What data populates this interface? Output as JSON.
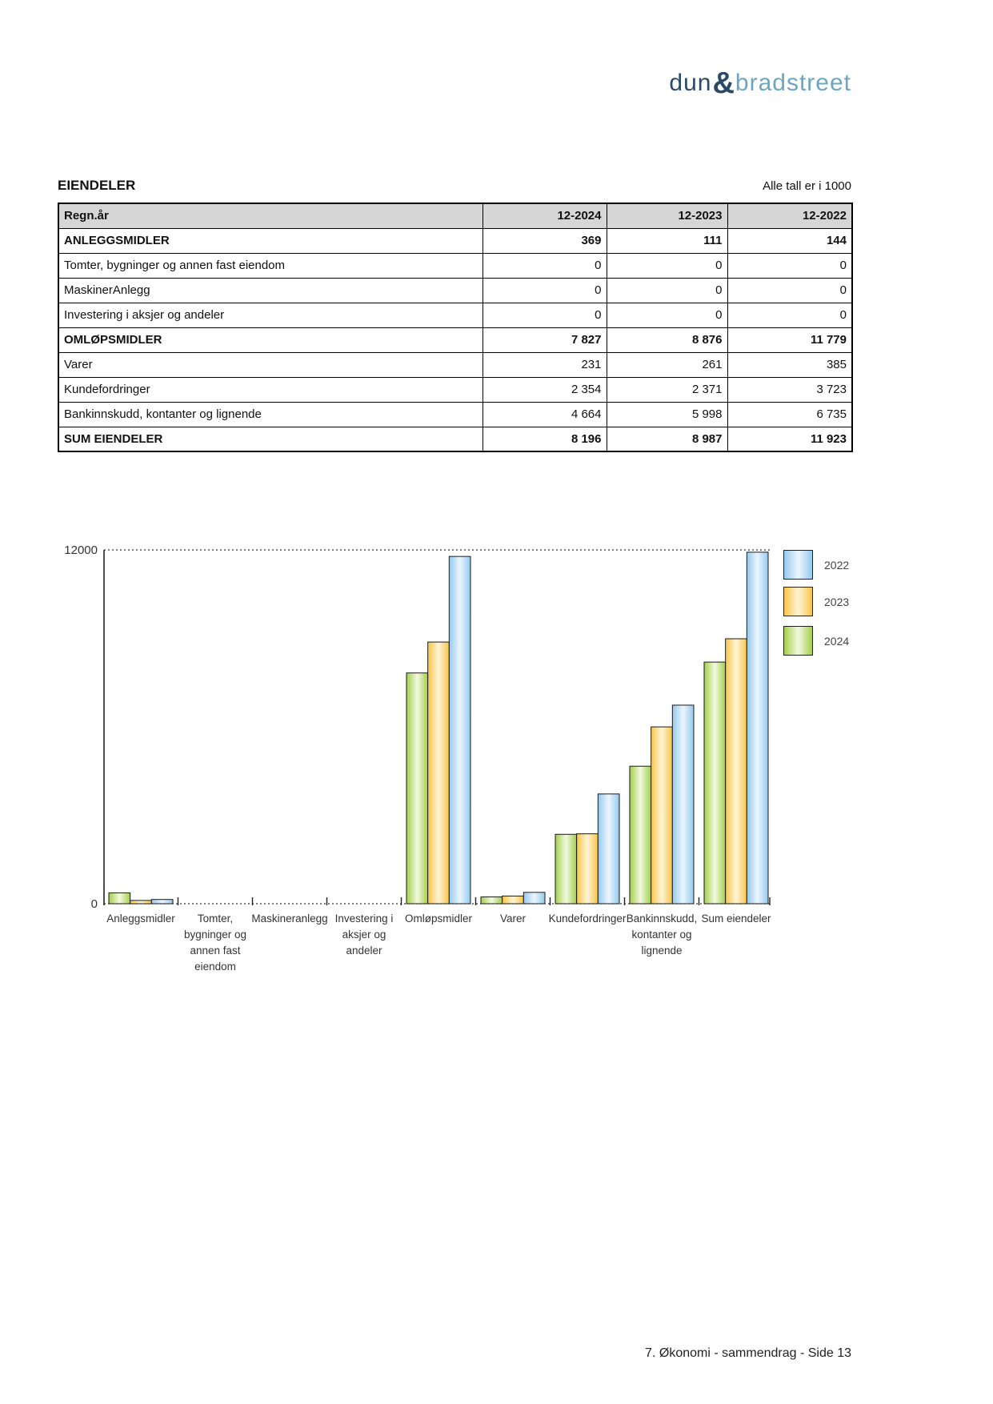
{
  "logo": {
    "part1": "dun",
    "amp": "&",
    "part2": "bradstreet",
    "color_dark": "#2b4a67",
    "color_light": "#6ba6c2"
  },
  "section": {
    "title": "EIENDELER",
    "units_note": "Alle tall er i 1000"
  },
  "table": {
    "header": [
      "Regn.år",
      "12-2024",
      "12-2023",
      "12-2022"
    ],
    "rows": [
      {
        "label": "ANLEGGSMIDLER",
        "values": [
          "369",
          "111",
          "144"
        ],
        "bold": true
      },
      {
        "label": "Tomter, bygninger og annen fast eiendom",
        "values": [
          "0",
          "0",
          "0"
        ],
        "bold": false
      },
      {
        "label": "MaskinerAnlegg",
        "values": [
          "0",
          "0",
          "0"
        ],
        "bold": false
      },
      {
        "label": "Investering i aksjer og andeler",
        "values": [
          "0",
          "0",
          "0"
        ],
        "bold": false
      },
      {
        "label": "OMLØPSMIDLER",
        "values": [
          "7 827",
          "8 876",
          "11 779"
        ],
        "bold": true
      },
      {
        "label": "Varer",
        "values": [
          "231",
          "261",
          "385"
        ],
        "bold": false
      },
      {
        "label": "Kundefordringer",
        "values": [
          "2 354",
          "2 371",
          "3 723"
        ],
        "bold": false
      },
      {
        "label": "Bankinnskudd, kontanter og lignende",
        "values": [
          "4 664",
          "5 998",
          "6 735"
        ],
        "bold": false
      },
      {
        "label": "SUM EIENDELER",
        "values": [
          "8 196",
          "8 987",
          "11 923"
        ],
        "bold": true
      }
    ]
  },
  "chart_data": {
    "type": "bar",
    "title": "",
    "xlabel": "",
    "ylabel": "",
    "ylim": [
      0,
      12000
    ],
    "ytick_labels": {
      "top": "12000",
      "bottom": "0"
    },
    "grid": "dotted line at y=12000 and dotted baseline at y=0",
    "legend_position": "right",
    "categories": [
      "Anleggsmidler",
      "Tomter, bygninger og annen fast eiendom",
      "Maskineranlegg",
      "Investering i aksjer og andeler",
      "Omløpsmidler",
      "Varer",
      "Kundefordringer",
      "Bankinnskudd, kontanter og lignende",
      "Sum eiendeler"
    ],
    "category_label_lines": [
      [
        "Anleggsmidler"
      ],
      [
        "Tomter,",
        "bygninger og",
        "annen fast",
        "eiendom"
      ],
      [
        "Maskineranlegg"
      ],
      [
        "Investering i",
        "aksjer og",
        "andeler"
      ],
      [
        "Omløpsmidler"
      ],
      [
        "Varer"
      ],
      [
        "Kundefordringer"
      ],
      [
        "Bankinnskudd,",
        "kontanter og",
        "lignende"
      ],
      [
        "Sum eiendeler"
      ]
    ],
    "series": [
      {
        "name": "2024",
        "edge_color": "#a3cf4a",
        "center_color": "#f3f9e1",
        "values": [
          369,
          0,
          0,
          0,
          7827,
          231,
          2354,
          4664,
          8196
        ]
      },
      {
        "name": "2023",
        "edge_color": "#f9c548",
        "center_color": "#fdf4d7",
        "values": [
          111,
          0,
          0,
          0,
          8876,
          261,
          2371,
          5998,
          8987
        ]
      },
      {
        "name": "2022",
        "edge_color": "#94c9ed",
        "center_color": "#ecf6fd",
        "values": [
          144,
          0,
          0,
          0,
          11779,
          385,
          3723,
          6735,
          11923
        ]
      }
    ],
    "legend_order": [
      "2022",
      "2023",
      "2024"
    ]
  },
  "footer": {
    "text": "7. Økonomi - sammendrag - Side 13"
  }
}
